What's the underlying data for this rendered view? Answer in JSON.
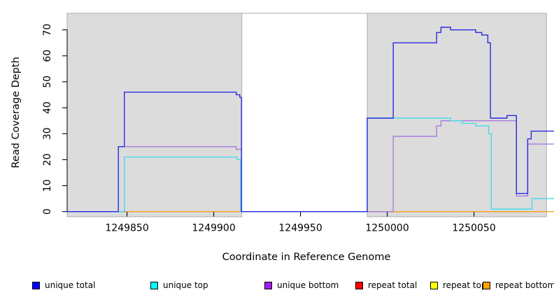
{
  "chart_data": {
    "type": "line",
    "step": true,
    "title": "",
    "xlabel": "Coordinate in Reference Genome",
    "ylabel": "Read Coverage Depth",
    "xlim": [
      1249815.5,
      1250096.3
    ],
    "ylim": [
      -2,
      76.4
    ],
    "x_ticks": [
      1249850,
      1249900,
      1249950,
      1250000,
      1250050
    ],
    "y_ticks": [
      0,
      10,
      20,
      30,
      40,
      50,
      60,
      70
    ],
    "grid": false,
    "plot_background": "#FFFFFF",
    "shade_color": "#DCDCDC",
    "shade_border_color": "#ABABAB",
    "shaded_regions": [
      {
        "x0": 1249815.5,
        "x1": 1249916.2
      },
      {
        "x0": 1249988.5,
        "x1": 1250091.8
      }
    ],
    "series": [
      {
        "name": "repeat top",
        "color": "#FFFF00",
        "legend_color": "#FFFF00",
        "segments": [
          [
            [
              1249989,
              0
            ],
            [
              1250003.5,
              0
            ]
          ]
        ]
      },
      {
        "name": "repeat total",
        "color": "#E02845",
        "legend_color": "#FF0000",
        "segments": [
          [
            [
              1249989,
              0
            ],
            [
              1250003.5,
              0
            ]
          ]
        ]
      },
      {
        "name": "repeat bottom",
        "color": "#FFA126",
        "legend_color": "#FFA500",
        "segments": [
          [
            [
              1249849,
              0
            ],
            [
              1249916,
              0
            ]
          ],
          [
            [
              1250003.5,
              0
            ],
            [
              1250096.3,
              0
            ]
          ]
        ]
      },
      {
        "name": "unique bottom",
        "color": "#A97BDC",
        "legend_color": "#A020F0",
        "segments": [
          [
            [
              1249815.5,
              0
            ],
            [
              1249845,
              25
            ],
            [
              1249913,
              24
            ],
            [
              1249916,
              0
            ],
            [
              1250003.5,
              29
            ],
            [
              1250028.5,
              33
            ],
            [
              1250031,
              35
            ],
            [
              1250074.5,
              6
            ],
            [
              1250081,
              26
            ],
            [
              1250096.3,
              26
            ]
          ]
        ]
      },
      {
        "name": "unique top",
        "color": "#49DCE8",
        "legend_color": "#00FFFF",
        "segments": [
          [
            [
              1249815.5,
              0
            ],
            [
              1249848.5,
              21
            ],
            [
              1249913.5,
              20
            ],
            [
              1249915.5,
              0
            ],
            [
              1249988.5,
              36
            ],
            [
              1250036.5,
              35
            ],
            [
              1250043,
              34
            ],
            [
              1250051,
              33
            ],
            [
              1250058.5,
              30
            ],
            [
              1250060,
              1
            ],
            [
              1250083.5,
              5
            ],
            [
              1250096.3,
              5
            ]
          ]
        ]
      },
      {
        "name": "unique total",
        "color": "#2B2BE0",
        "legend_color": "#0000FF",
        "segments": [
          [
            [
              1249815.5,
              0
            ],
            [
              1249845,
              25
            ],
            [
              1249848.5,
              46
            ],
            [
              1249913,
              45
            ],
            [
              1249915,
              44
            ],
            [
              1249916,
              0
            ],
            [
              1249988.5,
              36
            ],
            [
              1250003.5,
              65
            ],
            [
              1250028.5,
              69
            ],
            [
              1250031,
              71
            ],
            [
              1250036.5,
              70
            ],
            [
              1250051,
              69
            ],
            [
              1250054.5,
              68
            ],
            [
              1250058,
              65
            ],
            [
              1250059.5,
              36
            ],
            [
              1250069,
              37
            ],
            [
              1250074.5,
              7
            ],
            [
              1250081,
              28
            ],
            [
              1250083,
              31
            ],
            [
              1250096.3,
              31
            ]
          ]
        ]
      }
    ],
    "legend": [
      {
        "label": "unique total",
        "color": "#0000FF"
      },
      {
        "label": "unique top",
        "color": "#00FFFF"
      },
      {
        "label": "unique bottom",
        "color": "#A020F0"
      },
      {
        "label": "repeat total",
        "color": "#FF0000"
      },
      {
        "label": "repeat top",
        "color": "#FFFF00"
      },
      {
        "label": "repeat bottom",
        "color": "#FFA500"
      }
    ],
    "legend_position": "bottom"
  }
}
